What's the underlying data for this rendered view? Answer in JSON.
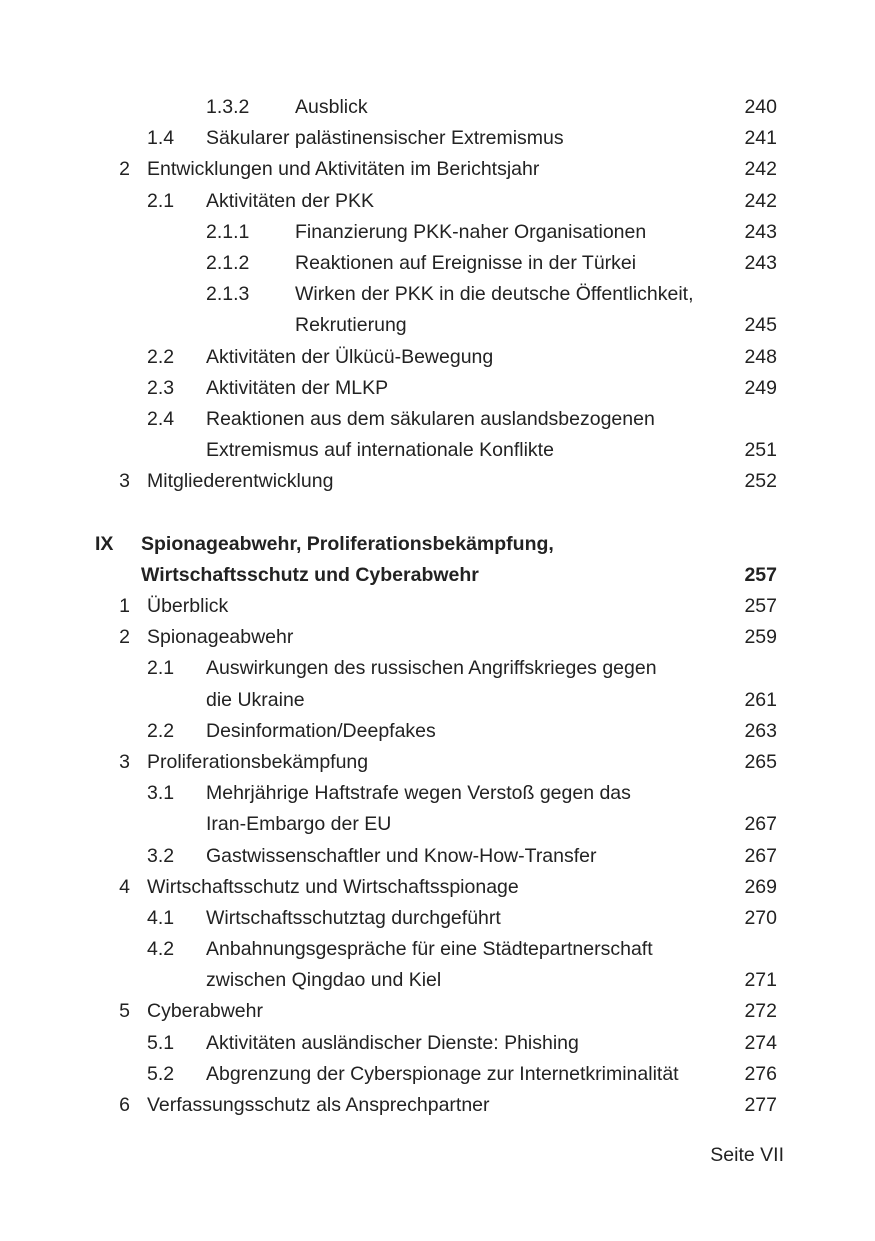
{
  "toc": [
    {
      "level": 3,
      "num": "1.3.2",
      "lines": [
        "Ausblick"
      ],
      "page": "240"
    },
    {
      "level": 2,
      "num": "1.4",
      "lines": [
        "Säkularer palästinensischer Extremismus"
      ],
      "page": "241"
    },
    {
      "level": 1,
      "num": "2",
      "lines": [
        "Entwicklungen und Aktivitäten im Berichtsjahr"
      ],
      "page": "242"
    },
    {
      "level": 2,
      "num": "2.1",
      "lines": [
        "Aktivitäten der PKK"
      ],
      "page": "242"
    },
    {
      "level": 3,
      "num": "2.1.1",
      "lines": [
        "Finanzierung PKK-naher Organisationen"
      ],
      "page": "243"
    },
    {
      "level": 3,
      "num": "2.1.2",
      "lines": [
        "Reaktionen auf Ereignisse in der Türkei"
      ],
      "page": "243"
    },
    {
      "level": 3,
      "num": "2.1.3",
      "lines": [
        "Wirken der PKK in die deutsche Öffentlichkeit,",
        "Rekrutierung"
      ],
      "page": "245"
    },
    {
      "level": 2,
      "num": "2.2",
      "lines": [
        "Aktivitäten der Ülkücü-Bewegung"
      ],
      "page": "248"
    },
    {
      "level": 2,
      "num": "2.3",
      "lines": [
        "Aktivitäten der MLKP"
      ],
      "page": "249"
    },
    {
      "level": 2,
      "num": "2.4",
      "lines": [
        "Reaktionen aus dem säkularen auslandsbezogenen",
        "Extremismus auf internationale Konflikte"
      ],
      "page": "251"
    },
    {
      "level": 1,
      "num": "3",
      "lines": [
        "Mitgliederentwicklung"
      ],
      "page": "252"
    },
    {
      "level": 0,
      "num": "IX",
      "lines": [
        "Spionageabwehr, Proliferationsbekämpfung,",
        "Wirtschaftsschutz und Cyberabwehr"
      ],
      "page": "257"
    },
    {
      "level": 1,
      "num": "1",
      "lines": [
        "Überblick"
      ],
      "page": "257"
    },
    {
      "level": 1,
      "num": "2",
      "lines": [
        "Spionageabwehr"
      ],
      "page": "259"
    },
    {
      "level": 2,
      "num": "2.1",
      "lines": [
        "Auswirkungen des russischen Angriffskrieges gegen",
        "die Ukraine"
      ],
      "page": "261"
    },
    {
      "level": 2,
      "num": "2.2",
      "lines": [
        "Desinformation/Deepfakes"
      ],
      "page": "263"
    },
    {
      "level": 1,
      "num": "3",
      "lines": [
        "Proliferationsbekämpfung"
      ],
      "page": "265"
    },
    {
      "level": 2,
      "num": "3.1",
      "lines": [
        "Mehrjährige Haftstrafe wegen Verstoß gegen das",
        "Iran-Embargo der EU"
      ],
      "page": "267"
    },
    {
      "level": 2,
      "num": "3.2",
      "lines": [
        "Gastwissenschaftler und Know-How-Transfer"
      ],
      "page": "267"
    },
    {
      "level": 1,
      "num": "4",
      "lines": [
        "Wirtschaftsschutz und Wirtschaftsspionage"
      ],
      "page": "269"
    },
    {
      "level": 2,
      "num": "4.1",
      "lines": [
        "Wirtschaftsschutztag durchgeführt"
      ],
      "page": "270"
    },
    {
      "level": 2,
      "num": "4.2",
      "lines": [
        "Anbahnungsgespräche für eine Städtepartnerschaft",
        "zwischen Qingdao und Kiel"
      ],
      "page": "271"
    },
    {
      "level": 1,
      "num": "5",
      "lines": [
        "Cyberabwehr"
      ],
      "page": "272"
    },
    {
      "level": 2,
      "num": "5.1",
      "lines": [
        "Aktivitäten ausländischer Dienste: Phishing"
      ],
      "page": "274"
    },
    {
      "level": 2,
      "num": "5.2",
      "lines": [
        "Abgrenzung der Cyberspionage zur Internetkriminalität"
      ],
      "page": "276"
    },
    {
      "level": 1,
      "num": "6",
      "lines": [
        "Verfassungsschutz als Ansprechpartner"
      ],
      "page": "277"
    }
  ],
  "footer": {
    "page_label": "Seite VII"
  }
}
